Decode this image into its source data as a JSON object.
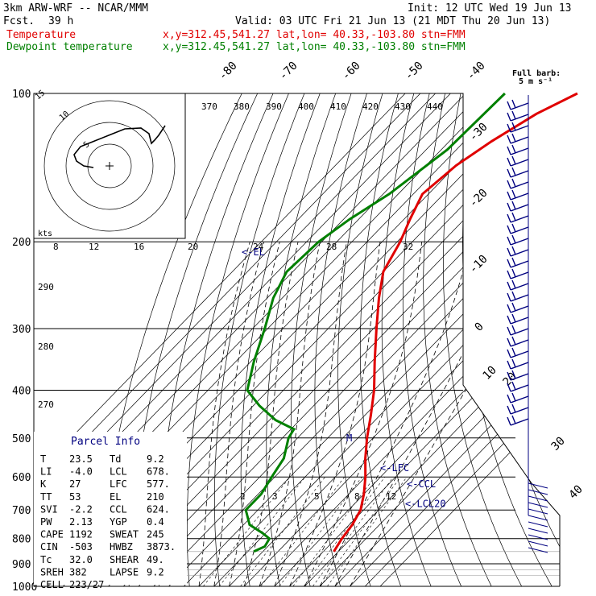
{
  "header": {
    "model": "3km ARW-WRF -- NCAR/MMM",
    "init": "Init: 12 UTC Wed 19 Jun 13",
    "fcst_label": "Fcst.",
    "fcst_value": "39 h",
    "valid": "Valid: 03 UTC Fri 21 Jun 13 (21 MDT Thu 20 Jun 13)",
    "temp_label": "Temperature",
    "temp_loc": "x,y=312.45,541.27   lat,lon= 40.33,-103.80  stn=FMM",
    "dew_label": "Dewpoint temperature",
    "dew_loc": "x,y=312.45,541.27   lat,lon= 40.33,-103.80  stn=FMM",
    "barb_title": "Full barb:",
    "barb_unit": "5 m s⁻¹"
  },
  "colors": {
    "temperature": "#e00000",
    "dewpoint": "#008000",
    "parcel": "#000080",
    "grid": "#000000",
    "moist_adiabat": "#000000",
    "dry_adiabat": "#000000"
  },
  "chart_data": {
    "type": "line",
    "title": "",
    "xlabel": "",
    "ylabel": "",
    "pressure_axis": {
      "scale": "log",
      "ylim": [
        1000,
        100
      ],
      "ticks": [
        100,
        200,
        300,
        400,
        500,
        600,
        700,
        800,
        900,
        1000
      ]
    },
    "isotherm_labels": [
      "-80",
      "-70",
      "-60",
      "-50",
      "-40",
      "-30",
      "-20",
      "-10",
      "0",
      "10",
      "20",
      "30",
      "40"
    ],
    "theta_labels": [
      "370",
      "380",
      "390",
      "400",
      "410",
      "420",
      "430",
      "440",
      "290",
      "280",
      "270"
    ],
    "mixing_ratio_labels_upper": [
      "8",
      "12",
      "16",
      "20",
      "24",
      "28",
      "32"
    ],
    "mixing_ratio_labels_lower": [
      "2",
      "3",
      "5",
      "8",
      "12"
    ],
    "series": [
      {
        "name": "Temperature",
        "points": [
          [
            100,
            -43
          ],
          [
            110,
            -50
          ],
          [
            125,
            -56
          ],
          [
            140,
            -60
          ],
          [
            160,
            -62
          ],
          [
            180,
            -58
          ],
          [
            200,
            -54
          ],
          [
            230,
            -50
          ],
          [
            260,
            -43
          ],
          [
            300,
            -34
          ],
          [
            350,
            -24
          ],
          [
            400,
            -15
          ],
          [
            450,
            -8
          ],
          [
            500,
            -2
          ],
          [
            550,
            4
          ],
          [
            600,
            10
          ],
          [
            650,
            15
          ],
          [
            700,
            19
          ],
          [
            750,
            21
          ],
          [
            800,
            22
          ],
          [
            850,
            23.5
          ]
        ]
      },
      {
        "name": "Dewpoint temperature",
        "points": [
          [
            100,
            -67
          ],
          [
            130,
            -68
          ],
          [
            160,
            -73
          ],
          [
            180,
            -78
          ],
          [
            200,
            -81
          ],
          [
            230,
            -82
          ],
          [
            260,
            -78
          ],
          [
            300,
            -71
          ],
          [
            350,
            -64
          ],
          [
            400,
            -57
          ],
          [
            430,
            -48
          ],
          [
            460,
            -38
          ],
          [
            480,
            -29
          ],
          [
            500,
            -28
          ],
          [
            550,
            -23
          ],
          [
            600,
            -21
          ],
          [
            650,
            -19
          ],
          [
            700,
            -19
          ],
          [
            750,
            -13
          ],
          [
            780,
            -6
          ],
          [
            800,
            -2
          ],
          [
            830,
            -1
          ],
          [
            850,
            -3
          ]
        ]
      }
    ],
    "hodograph": {
      "speed_rings": [
        "5",
        "10",
        "15"
      ],
      "unit_label": "kts"
    },
    "parcel_levels": [
      {
        "label": "LCL20",
        "p": 680
      },
      {
        "label": "CCL",
        "p": 620
      },
      {
        "label": "LFC",
        "p": 575
      },
      {
        "label": "M",
        "p": 500
      },
      {
        "label": "EL",
        "p": 210
      }
    ]
  },
  "indices": {
    "title": "Parcel Info",
    "rows": [
      {
        "k1": "T",
        "v1": "23.5",
        "k2": "Td",
        "v2": "9.2"
      },
      {
        "k1": "LI",
        "v1": "-4.0",
        "k2": "LCL",
        "v2": "678."
      },
      {
        "k1": "K",
        "v1": "27",
        "k2": "LFC",
        "v2": "577."
      },
      {
        "k1": "TT",
        "v1": "53",
        "k2": "EL",
        "v2": "210"
      },
      {
        "k1": "SVI",
        "v1": "-2.2",
        "k2": "CCL",
        "v2": "624."
      },
      {
        "k1": "PW",
        "v1": "2.13",
        "k2": "YGP",
        "v2": "0.4"
      },
      {
        "k1": "CAPE",
        "v1": "1192",
        "k2": "SWEAT",
        "v2": "245"
      },
      {
        "k1": "CIN",
        "v1": "-503",
        "k2": "HWBZ",
        "v2": "3873."
      },
      {
        "k1": "Tc",
        "v1": "32.0",
        "k2": "SHEAR",
        "v2": "49."
      },
      {
        "k1": "SREH",
        "v1": "382",
        "k2": "LAPSE",
        "v2": "9.2"
      },
      {
        "k1": "CELL",
        "v1": "223/27",
        "k2": "",
        "v2": ""
      }
    ]
  }
}
